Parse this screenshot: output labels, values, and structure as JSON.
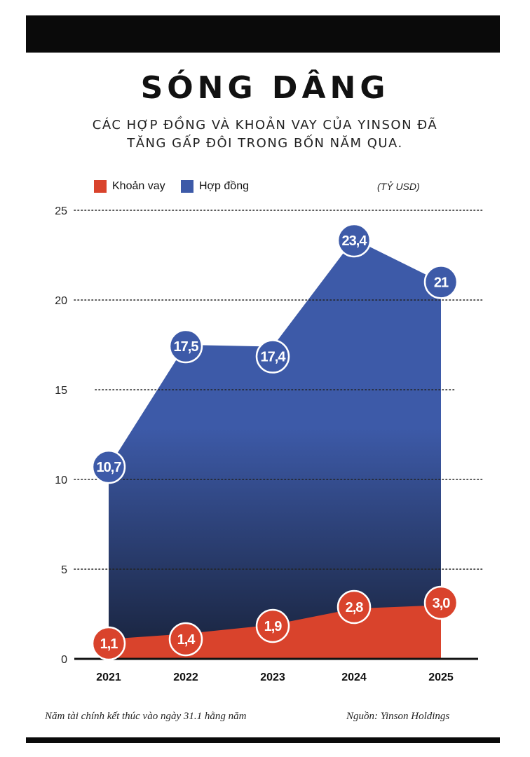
{
  "header": {
    "title": "SÓNG DÂNG",
    "subtitle": "CÁC HỢP ĐỒNG VÀ KHOẢN VAY CỦA YINSON ĐÃ TĂNG GẤP ĐÔI TRONG BỐN NĂM QUA."
  },
  "legend": {
    "loan_label": "Khoản vay",
    "contract_label": "Hợp đồng",
    "unit": "(TỶ USD)"
  },
  "colors": {
    "loan": "#d9432c",
    "contract": "#3d5aa8",
    "contract_dark": "#18223a"
  },
  "chart_data": {
    "type": "area",
    "x": [
      "2021",
      "2022",
      "2023",
      "2024",
      "2025"
    ],
    "ylim": [
      0,
      25
    ],
    "yticks": [
      "0",
      "5",
      "10",
      "15",
      "20",
      "25"
    ],
    "grid": true,
    "legend_position": "top-left",
    "series": [
      {
        "name": "Hợp đồng",
        "values": [
          10.7,
          17.5,
          17.4,
          23.4,
          21
        ],
        "labels": [
          "10,7",
          "17,5",
          "17,4",
          "23,4",
          "21"
        ]
      },
      {
        "name": "Khoản vay",
        "values": [
          1.1,
          1.4,
          1.9,
          2.8,
          3.0
        ],
        "labels": [
          "1,1",
          "1,4",
          "1,9",
          "2,8",
          "3,0"
        ]
      }
    ]
  },
  "footer": {
    "note": "Năm tài chính kết thúc vào ngày 31.1 hằng năm",
    "source": "Nguồn: Yinson Holdings"
  }
}
